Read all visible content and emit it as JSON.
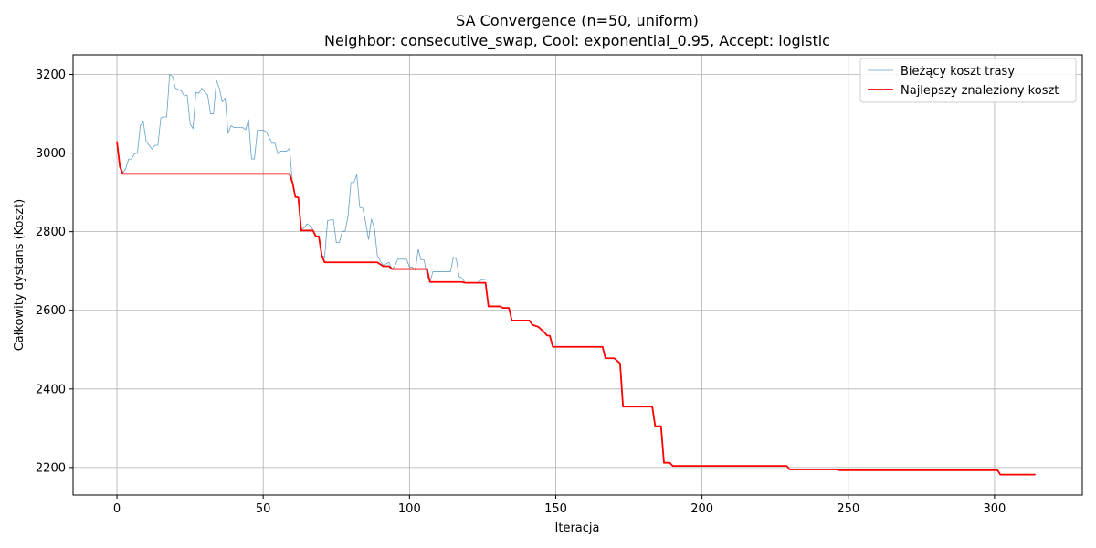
{
  "chart_data": {
    "type": "line",
    "title": "SA Convergence (n=50, uniform)",
    "subtitle": "Neighbor: consecutive_swap, Cool: exponential_0.95, Accept: logistic",
    "xlabel": "Iteracja",
    "ylabel": "Całkowity dystans (Koszt)",
    "xlim": [
      -15,
      330
    ],
    "ylim": [
      2130,
      3250
    ],
    "xticks": [
      0,
      50,
      100,
      150,
      200,
      250,
      300
    ],
    "yticks": [
      2200,
      2400,
      2600,
      2800,
      3000,
      3200
    ],
    "grid": true,
    "legend_position": "top-right",
    "series": [
      {
        "name": "Bieżący koszt trasy",
        "color": "#1f77b4",
        "points": [
          [
            0,
            3030
          ],
          [
            1,
            2975
          ],
          [
            2,
            2950
          ],
          [
            3,
            2960
          ],
          [
            4,
            2985
          ],
          [
            5,
            2985
          ],
          [
            6,
            2998
          ],
          [
            7,
            3000
          ],
          [
            8,
            3070
          ],
          [
            9,
            3080
          ],
          [
            10,
            3030
          ],
          [
            11,
            3020
          ],
          [
            12,
            3010
          ],
          [
            13,
            3020
          ],
          [
            14,
            3020
          ],
          [
            15,
            3090
          ],
          [
            16,
            3092
          ],
          [
            17,
            3092
          ],
          [
            18,
            3200
          ],
          [
            19,
            3195
          ],
          [
            20,
            3165
          ],
          [
            21,
            3162
          ],
          [
            22,
            3158
          ],
          [
            23,
            3145
          ],
          [
            24,
            3148
          ],
          [
            25,
            3075
          ],
          [
            26,
            3062
          ],
          [
            27,
            3155
          ],
          [
            28,
            3152
          ],
          [
            29,
            3165
          ],
          [
            30,
            3155
          ],
          [
            31,
            3148
          ],
          [
            32,
            3100
          ],
          [
            33,
            3100
          ],
          [
            34,
            3185
          ],
          [
            35,
            3165
          ],
          [
            36,
            3130
          ],
          [
            37,
            3140
          ],
          [
            38,
            3050
          ],
          [
            39,
            3070
          ],
          [
            40,
            3065
          ],
          [
            41,
            3065
          ],
          [
            42,
            3065
          ],
          [
            43,
            3065
          ],
          [
            44,
            3060
          ],
          [
            45,
            3085
          ],
          [
            46,
            2985
          ],
          [
            47,
            2985
          ],
          [
            48,
            3058
          ],
          [
            49,
            3058
          ],
          [
            50,
            3058
          ],
          [
            51,
            3055
          ],
          [
            52,
            3040
          ],
          [
            53,
            3025
          ],
          [
            54,
            3025
          ],
          [
            55,
            2998
          ],
          [
            56,
            3005
          ],
          [
            57,
            3005
          ],
          [
            58,
            3005
          ],
          [
            59,
            3012
          ],
          [
            60,
            2925
          ],
          [
            61,
            2890
          ],
          [
            62,
            2885
          ],
          [
            63,
            2805
          ],
          [
            64,
            2810
          ],
          [
            65,
            2820
          ],
          [
            66,
            2815
          ],
          [
            67,
            2805
          ],
          [
            68,
            2790
          ],
          [
            69,
            2788
          ],
          [
            70,
            2740
          ],
          [
            71,
            2735
          ],
          [
            72,
            2828
          ],
          [
            73,
            2830
          ],
          [
            74,
            2830
          ],
          [
            75,
            2772
          ],
          [
            76,
            2772
          ],
          [
            77,
            2800
          ],
          [
            78,
            2802
          ],
          [
            79,
            2840
          ],
          [
            80,
            2925
          ],
          [
            81,
            2925
          ],
          [
            82,
            2945
          ],
          [
            83,
            2862
          ],
          [
            84,
            2860
          ],
          [
            85,
            2825
          ],
          [
            86,
            2780
          ],
          [
            87,
            2832
          ],
          [
            88,
            2810
          ],
          [
            89,
            2740
          ],
          [
            90,
            2725
          ],
          [
            91,
            2715
          ],
          [
            92,
            2718
          ],
          [
            93,
            2722
          ],
          [
            94,
            2705
          ],
          [
            95,
            2712
          ],
          [
            96,
            2730
          ],
          [
            97,
            2730
          ],
          [
            98,
            2730
          ],
          [
            99,
            2730
          ],
          [
            100,
            2710
          ],
          [
            101,
            2710
          ],
          [
            102,
            2702
          ],
          [
            103,
            2755
          ],
          [
            104,
            2728
          ],
          [
            105,
            2728
          ],
          [
            106,
            2688
          ],
          [
            107,
            2672
          ],
          [
            108,
            2698
          ],
          [
            109,
            2698
          ],
          [
            110,
            2698
          ],
          [
            111,
            2698
          ],
          [
            112,
            2698
          ],
          [
            113,
            2698
          ],
          [
            114,
            2698
          ],
          [
            115,
            2735
          ],
          [
            116,
            2730
          ],
          [
            117,
            2685
          ],
          [
            118,
            2682
          ],
          [
            119,
            2670
          ],
          [
            120,
            2670
          ],
          [
            121,
            2670
          ],
          [
            122,
            2670
          ],
          [
            123,
            2670
          ],
          [
            124,
            2675
          ],
          [
            125,
            2678
          ],
          [
            126,
            2678
          ]
        ]
      },
      {
        "name": "Najlepszy znaleziony koszt",
        "color": "#ff0000",
        "points": [
          [
            0,
            3030
          ],
          [
            1,
            2965
          ],
          [
            2,
            2947
          ],
          [
            59,
            2947
          ],
          [
            60,
            2925
          ],
          [
            61,
            2888
          ],
          [
            62,
            2887
          ],
          [
            63,
            2803
          ],
          [
            67,
            2803
          ],
          [
            68,
            2788
          ],
          [
            69,
            2788
          ],
          [
            70,
            2740
          ],
          [
            71,
            2722
          ],
          [
            89,
            2722
          ],
          [
            91,
            2712
          ],
          [
            93,
            2712
          ],
          [
            94,
            2705
          ],
          [
            106,
            2705
          ],
          [
            107,
            2672
          ],
          [
            118,
            2672
          ],
          [
            119,
            2670
          ],
          [
            126,
            2670
          ],
          [
            127,
            2610
          ],
          [
            131,
            2610
          ],
          [
            132,
            2606
          ],
          [
            134,
            2606
          ],
          [
            135,
            2574
          ],
          [
            141,
            2574
          ],
          [
            142,
            2563
          ],
          [
            144,
            2558
          ],
          [
            146,
            2545
          ],
          [
            147,
            2536
          ],
          [
            148,
            2535
          ],
          [
            149,
            2507
          ],
          [
            166,
            2507
          ],
          [
            167,
            2478
          ],
          [
            170,
            2478
          ],
          [
            172,
            2465
          ],
          [
            173,
            2355
          ],
          [
            183,
            2355
          ],
          [
            184,
            2305
          ],
          [
            186,
            2305
          ],
          [
            187,
            2212
          ],
          [
            189,
            2212
          ],
          [
            190,
            2204
          ],
          [
            229,
            2204
          ],
          [
            230,
            2195
          ],
          [
            246,
            2195
          ],
          [
            247,
            2193
          ],
          [
            301,
            2193
          ],
          [
            302,
            2182
          ],
          [
            314,
            2182
          ]
        ]
      }
    ]
  }
}
